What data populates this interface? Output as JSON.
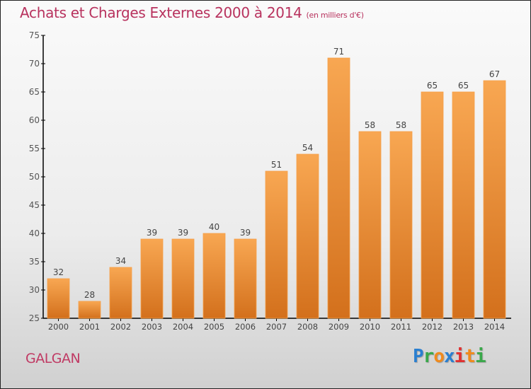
{
  "header": {
    "title": "Achats et Charges Externes 2000 à 2014",
    "unit": "(en milliers d'€)"
  },
  "footer": {
    "city": "GALGAN",
    "logo": {
      "letters": [
        "P",
        "r",
        "o",
        "x",
        "i",
        "t",
        "i"
      ],
      "colors": [
        "#2a7fd0",
        "#3aa84a",
        "#f08a1c",
        "#2a7fd0",
        "#e03030",
        "#f08a1c",
        "#3aa84a"
      ]
    }
  },
  "colors": {
    "title": "#b8325e",
    "bar_top": "#f8a752",
    "bar_bottom": "#d3701c",
    "label": "#444444"
  },
  "chart_data": {
    "type": "bar",
    "title": "Achats et Charges Externes 2000 à 2014 (en milliers d'€)",
    "xlabel": "",
    "ylabel": "",
    "categories": [
      "2000",
      "2001",
      "2002",
      "2003",
      "2004",
      "2005",
      "2006",
      "2007",
      "2008",
      "2009",
      "2010",
      "2011",
      "2012",
      "2013",
      "2014"
    ],
    "values": [
      32,
      28,
      34,
      39,
      39,
      40,
      39,
      51,
      54,
      71,
      58,
      58,
      65,
      65,
      67
    ],
    "ylim": [
      25,
      75
    ],
    "yticks": [
      25,
      30,
      35,
      40,
      45,
      50,
      55,
      60,
      65,
      70,
      75
    ],
    "grid": false,
    "legend": "none"
  }
}
